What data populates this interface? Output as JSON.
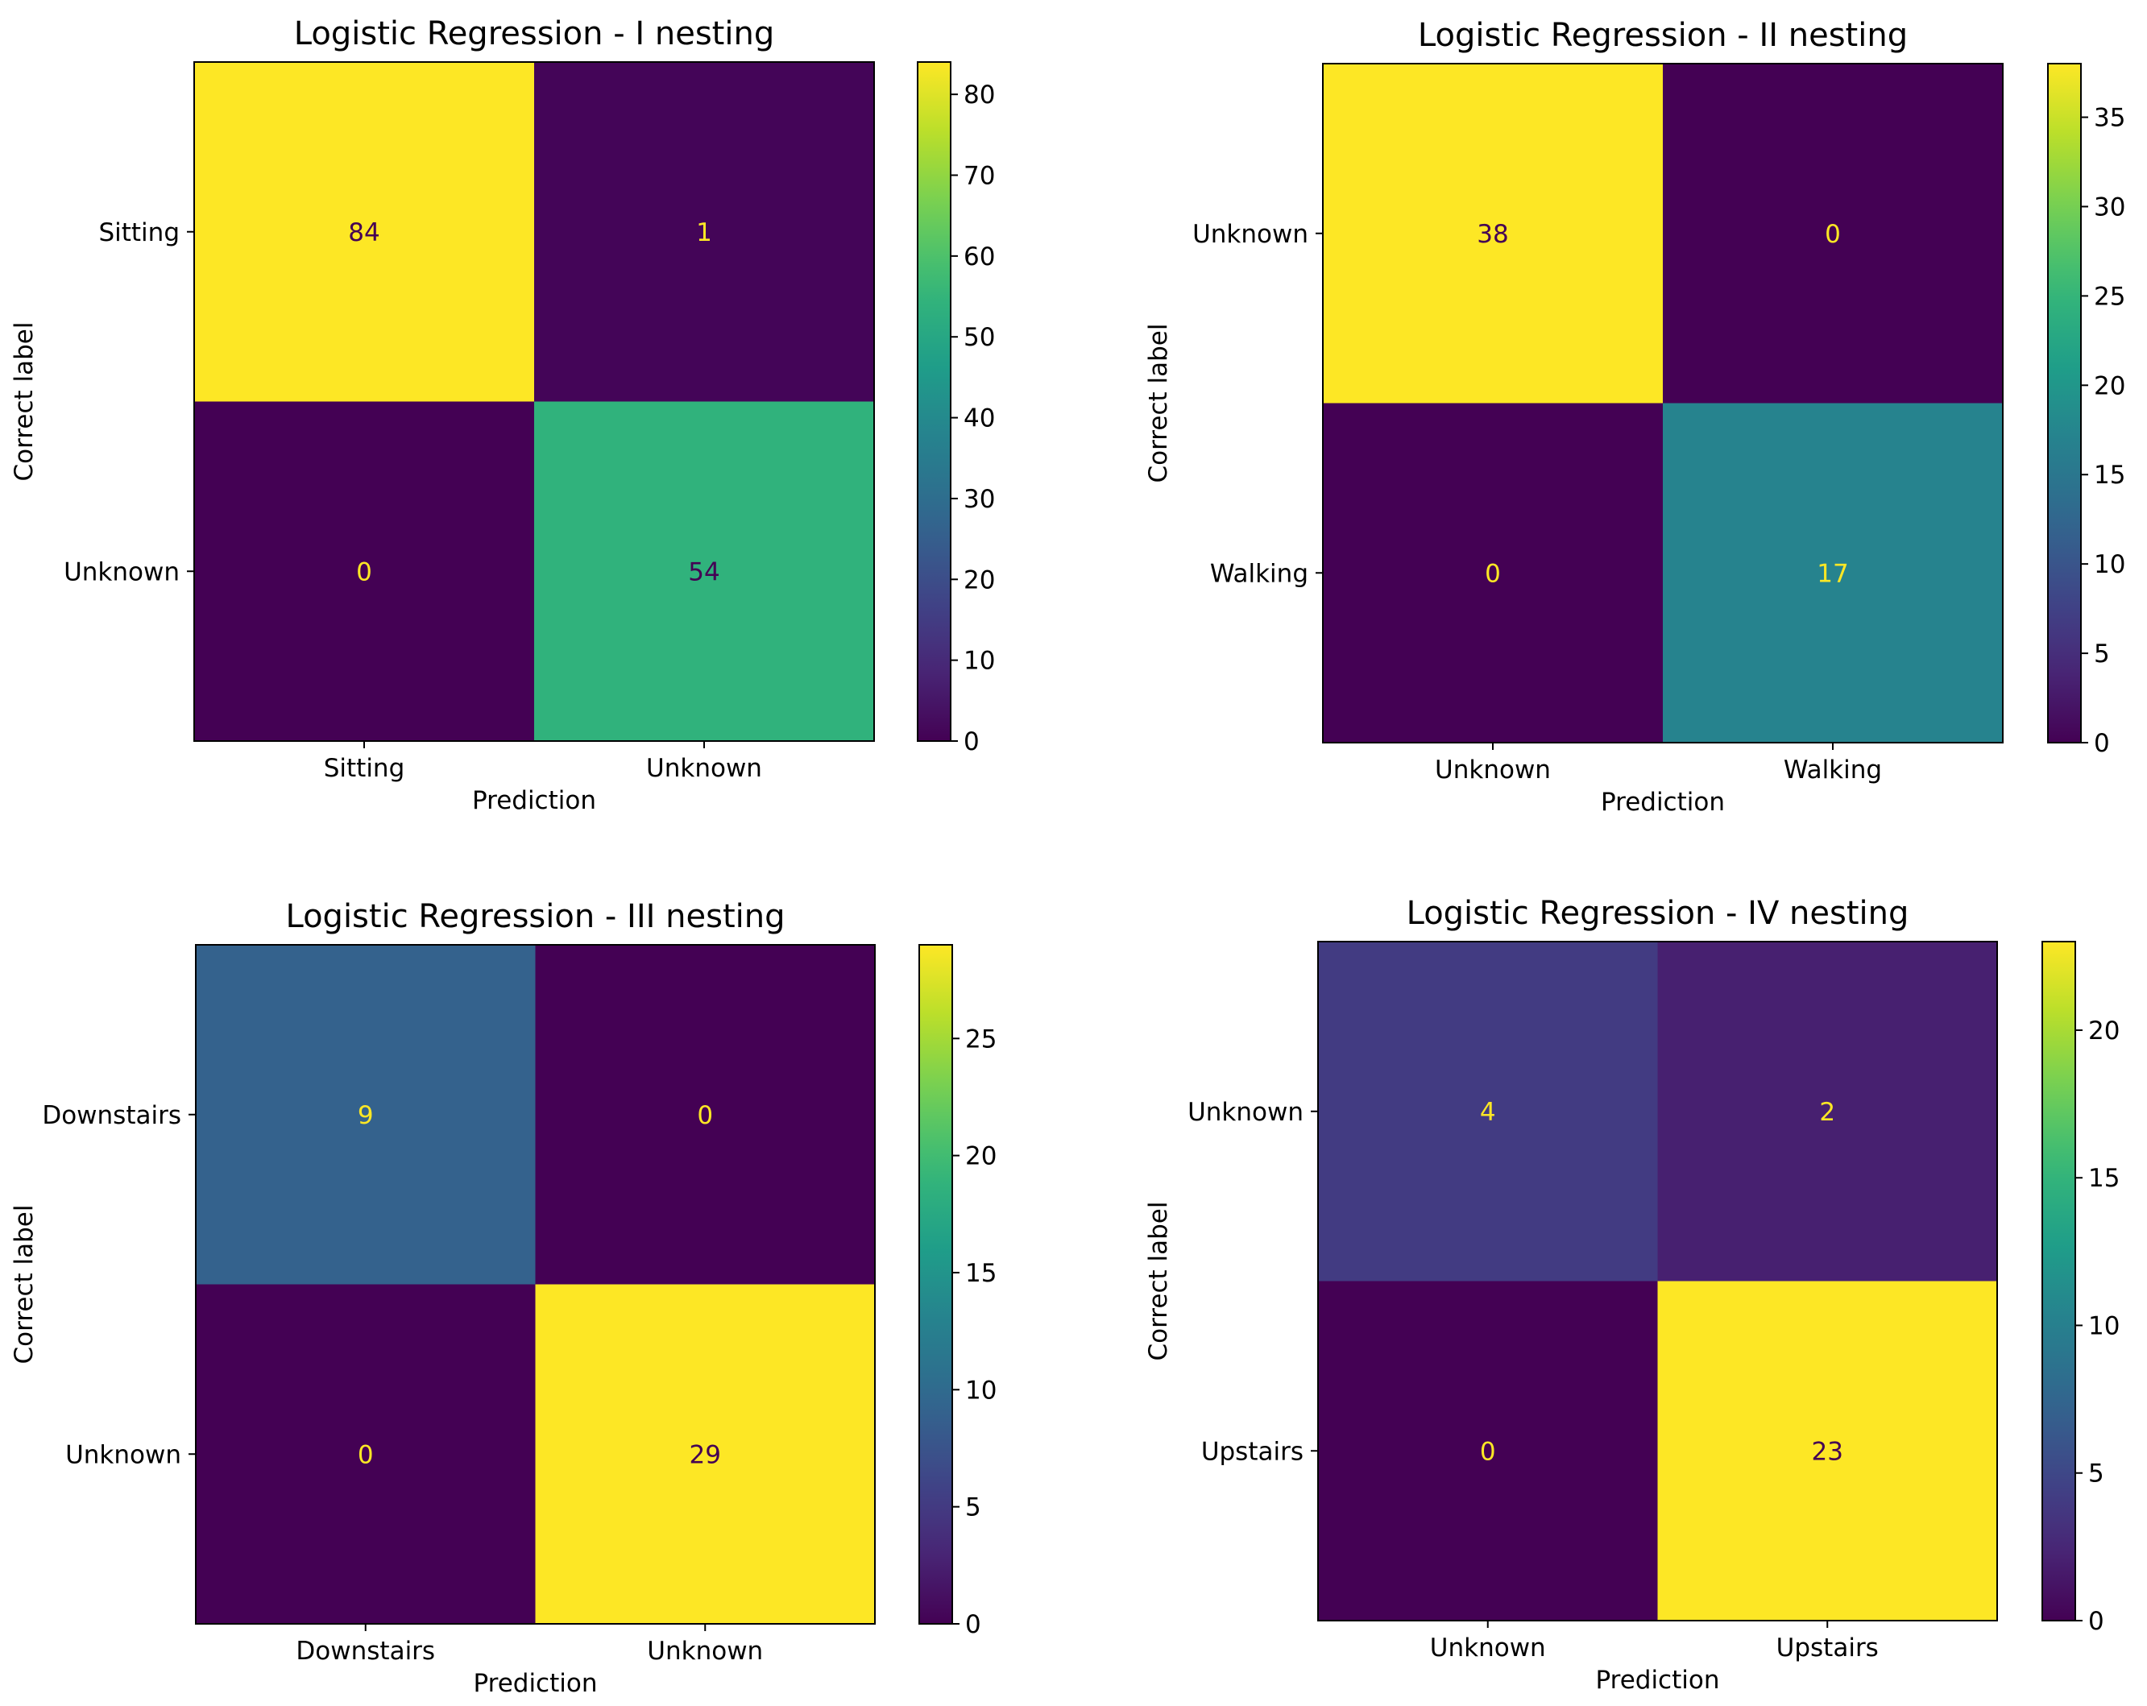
{
  "chart_data": [
    {
      "type": "heatmap",
      "title": "Logistic Regression - I nesting",
      "xlabel": "Prediction",
      "ylabel": "Correct label",
      "x_categories": [
        "Sitting",
        "Unknown"
      ],
      "y_categories": [
        "Sitting",
        "Unknown"
      ],
      "values": [
        [
          84,
          1
        ],
        [
          0,
          54
        ]
      ],
      "colormap": "viridis",
      "colorbar_range": [
        0,
        84
      ],
      "colorbar_ticks": [
        0,
        10,
        20,
        30,
        40,
        50,
        60,
        70,
        80
      ]
    },
    {
      "type": "heatmap",
      "title": "Logistic Regression - II nesting",
      "xlabel": "Prediction",
      "ylabel": "Correct label",
      "x_categories": [
        "Unknown",
        "Walking"
      ],
      "y_categories": [
        "Unknown",
        "Walking"
      ],
      "values": [
        [
          38,
          0
        ],
        [
          0,
          17
        ]
      ],
      "colormap": "viridis",
      "colorbar_range": [
        0,
        38
      ],
      "colorbar_ticks": [
        0,
        5,
        10,
        15,
        20,
        25,
        30,
        35
      ]
    },
    {
      "type": "heatmap",
      "title": "Logistic Regression - III nesting",
      "xlabel": "Prediction",
      "ylabel": "Correct label",
      "x_categories": [
        "Downstairs",
        "Unknown"
      ],
      "y_categories": [
        "Downstairs",
        "Unknown"
      ],
      "values": [
        [
          9,
          0
        ],
        [
          0,
          29
        ]
      ],
      "colormap": "viridis",
      "colorbar_range": [
        0,
        29
      ],
      "colorbar_ticks": [
        0,
        5,
        10,
        15,
        20,
        25
      ]
    },
    {
      "type": "heatmap",
      "title": "Logistic Regression - IV nesting",
      "xlabel": "Prediction",
      "ylabel": "Correct label",
      "x_categories": [
        "Unknown",
        "Upstairs"
      ],
      "y_categories": [
        "Unknown",
        "Upstairs"
      ],
      "values": [
        [
          4,
          2
        ],
        [
          0,
          23
        ]
      ],
      "colormap": "viridis",
      "colorbar_range": [
        0,
        23
      ],
      "colorbar_ticks": [
        0,
        5,
        10,
        15,
        20
      ]
    }
  ],
  "colors": {
    "text_on_dark": "#fde725",
    "text_on_light": "#440154",
    "axes": "#000000"
  }
}
